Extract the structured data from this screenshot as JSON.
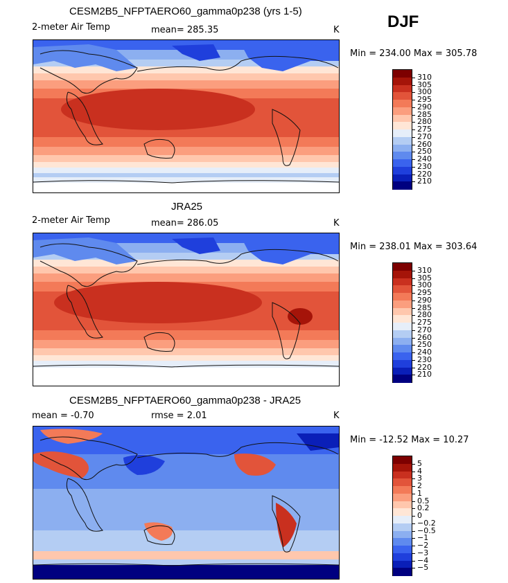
{
  "season": "DJF",
  "colors": {
    "land_line": "#111111",
    "warm_scale": [
      "#000080",
      "#0a1fb8",
      "#1f3fdc",
      "#3a63ee",
      "#5f8aee",
      "#8caff0",
      "#b4cdf3",
      "#e6eef9",
      "#ffe6d6",
      "#ffc7ad",
      "#fb9e7e",
      "#f37a58",
      "#e2543a",
      "#c9301f",
      "#a51409",
      "#7d0000"
    ],
    "diff_scale": [
      "#000080",
      "#0a1fb8",
      "#1f3fdc",
      "#3a63ee",
      "#5f8aee",
      "#8caff0",
      "#b4cdf3",
      "#e6eef9",
      "#ffe6d6",
      "#ffc7ad",
      "#fb9e7e",
      "#f37a58",
      "#e2543a",
      "#c9301f",
      "#a51409",
      "#7d0000"
    ]
  },
  "panels": [
    {
      "id": "model",
      "title": "CESM2B5_NFPTAERO60_gamma0p238 (yrs 1-5)",
      "variable": "2-meter Air Temp",
      "stat_text": "mean= 285.35",
      "units": "K",
      "minmax": "Min = 234.00  Max = 305.78",
      "colorbar_labels": [
        "310",
        "305",
        "300",
        "295",
        "290",
        "285",
        "280",
        "275",
        "270",
        "260",
        "250",
        "240",
        "230",
        "220",
        "210"
      ]
    },
    {
      "id": "obs",
      "title": "JRA25",
      "variable": "2-meter Air Temp",
      "stat_text": "mean= 286.05",
      "units": "K",
      "minmax": "Min = 238.01  Max = 303.64",
      "colorbar_labels": [
        "310",
        "305",
        "300",
        "295",
        "290",
        "285",
        "280",
        "275",
        "270",
        "260",
        "250",
        "240",
        "230",
        "220",
        "210"
      ]
    },
    {
      "id": "diff",
      "title": "CESM2B5_NFPTAERO60_gamma0p238 - JRA25",
      "variable": "mean =   -0.70",
      "stat_text": "rmse =    2.01",
      "units": "K",
      "minmax": "Min = -12.52  Max =  10.27",
      "colorbar_labels": [
        "5",
        "4",
        "3",
        "2",
        "1",
        "0.5",
        "0.2",
        "0",
        "−0.2",
        "−0.5",
        "−1",
        "−2",
        "−3",
        "−4",
        "−5"
      ]
    }
  ]
}
